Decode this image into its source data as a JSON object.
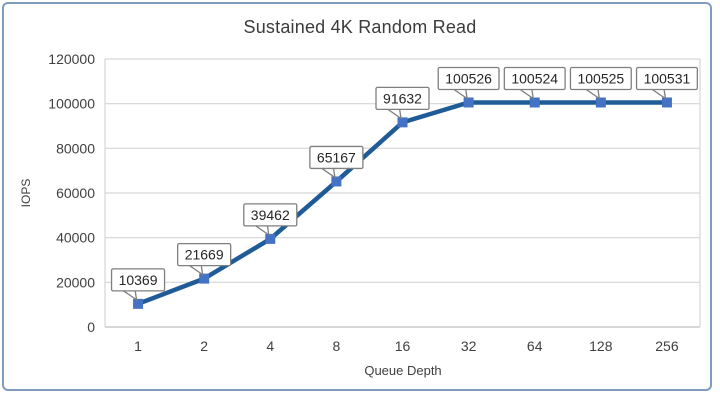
{
  "chart_data": {
    "type": "line",
    "title": "Sustained 4K Random Read",
    "xlabel": "Queue Depth",
    "ylabel": "IOPS",
    "categories": [
      "1",
      "2",
      "4",
      "8",
      "16",
      "32",
      "64",
      "128",
      "256"
    ],
    "series": [
      {
        "name": "Sustained 4K Random Read",
        "values": [
          10369,
          21669,
          39462,
          65167,
          91632,
          100526,
          100524,
          100525,
          100531
        ],
        "data_labels": [
          "10369",
          "21669",
          "39462",
          "65167",
          "91632",
          "100526",
          "100524",
          "100525",
          "100531"
        ]
      }
    ],
    "ylim": [
      0,
      120000
    ],
    "ytick_step": 20000,
    "ytick_labels": [
      "0",
      "20000",
      "40000",
      "60000",
      "80000",
      "100000",
      "120000"
    ],
    "grid": "horizontal",
    "legend": "none"
  },
  "style": {
    "frame_border_color": "#7d9cbe",
    "background_color": "#ffffff",
    "grid_color": "#d6d6d6",
    "axis_line_color": "#bfbfbf",
    "line_color": "#1e5b97",
    "marker_color": "#4472c4",
    "callout_fill": "#ffffff",
    "callout_border_color": "#7f7f7f",
    "callout_text_color": "#262626",
    "tick_text_color": "#404040",
    "title_text_color": "#3b3b3b"
  }
}
